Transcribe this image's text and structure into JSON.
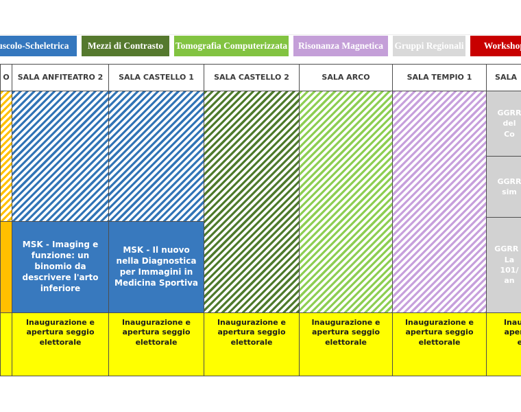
{
  "legend": {
    "items": [
      {
        "id": "muscolo-scheletrica",
        "label": "Muscolo-Scheletrica",
        "color": "#3477BE",
        "text_color": "#ffffff"
      },
      {
        "id": "mezzi-di-contrasto",
        "label": "Mezzi di Contrasto",
        "color": "#55792E",
        "text_color": "#ffffff"
      },
      {
        "id": "tomografia-computerizzata",
        "label": "Tomografia Computerizzata",
        "color": "#82C341",
        "text_color": "#ffffff"
      },
      {
        "id": "risonanza-magnetica",
        "label": "Risonanza Magnetica",
        "color": "#C49FD8",
        "text_color": "#ffffff"
      },
      {
        "id": "gruppi-regionali",
        "label": "Gruppi Regionali",
        "color": "#D9D9D9",
        "text_color": "#ffffff"
      },
      {
        "id": "workshop",
        "label": "Workshop A",
        "color": "#C80000",
        "text_color": "#ffffff"
      }
    ]
  },
  "schedule": {
    "rooms": {
      "partial_left": "O",
      "anfiteatro2": "SALA ANFITEATRO 2",
      "castello1": "SALA CASTELLO 1",
      "castello2": "SALA CASTELLO 2",
      "arco": "SALA ARCO",
      "tempio1": "SALA TEMPIO 1",
      "partial_right": "SALA"
    },
    "sessions": {
      "anfiteatro2": "MSK - Imaging e funzione: un binomio da descrivere l'arto inferiore",
      "castello1": "MSK - Il nuovo nella Diagnostica per Immagini in Medicina Sportiva"
    },
    "right_column": {
      "cell1": "GGRR\ndel\nCo",
      "cell2": "GGRR\nsim",
      "cell3": "GGRR -\nLa\n101/\nan"
    },
    "election_row_label": "Inaugurazione e apertura seggio elettorale",
    "colors": {
      "blue_hatch": "#3174B6",
      "dark_green_hatch": "#4E7A2C",
      "light_green_hatch": "#8DCE52",
      "purple_hatch": "#C7A0DC",
      "yellow_hatch": "#FFC000",
      "session_blue": "#3879BE",
      "amber_block": "#FFC000",
      "election_yellow": "#FFFF00",
      "ggrr_gray": "#D2D2D2",
      "grid_border": "#4d4d4d"
    }
  }
}
